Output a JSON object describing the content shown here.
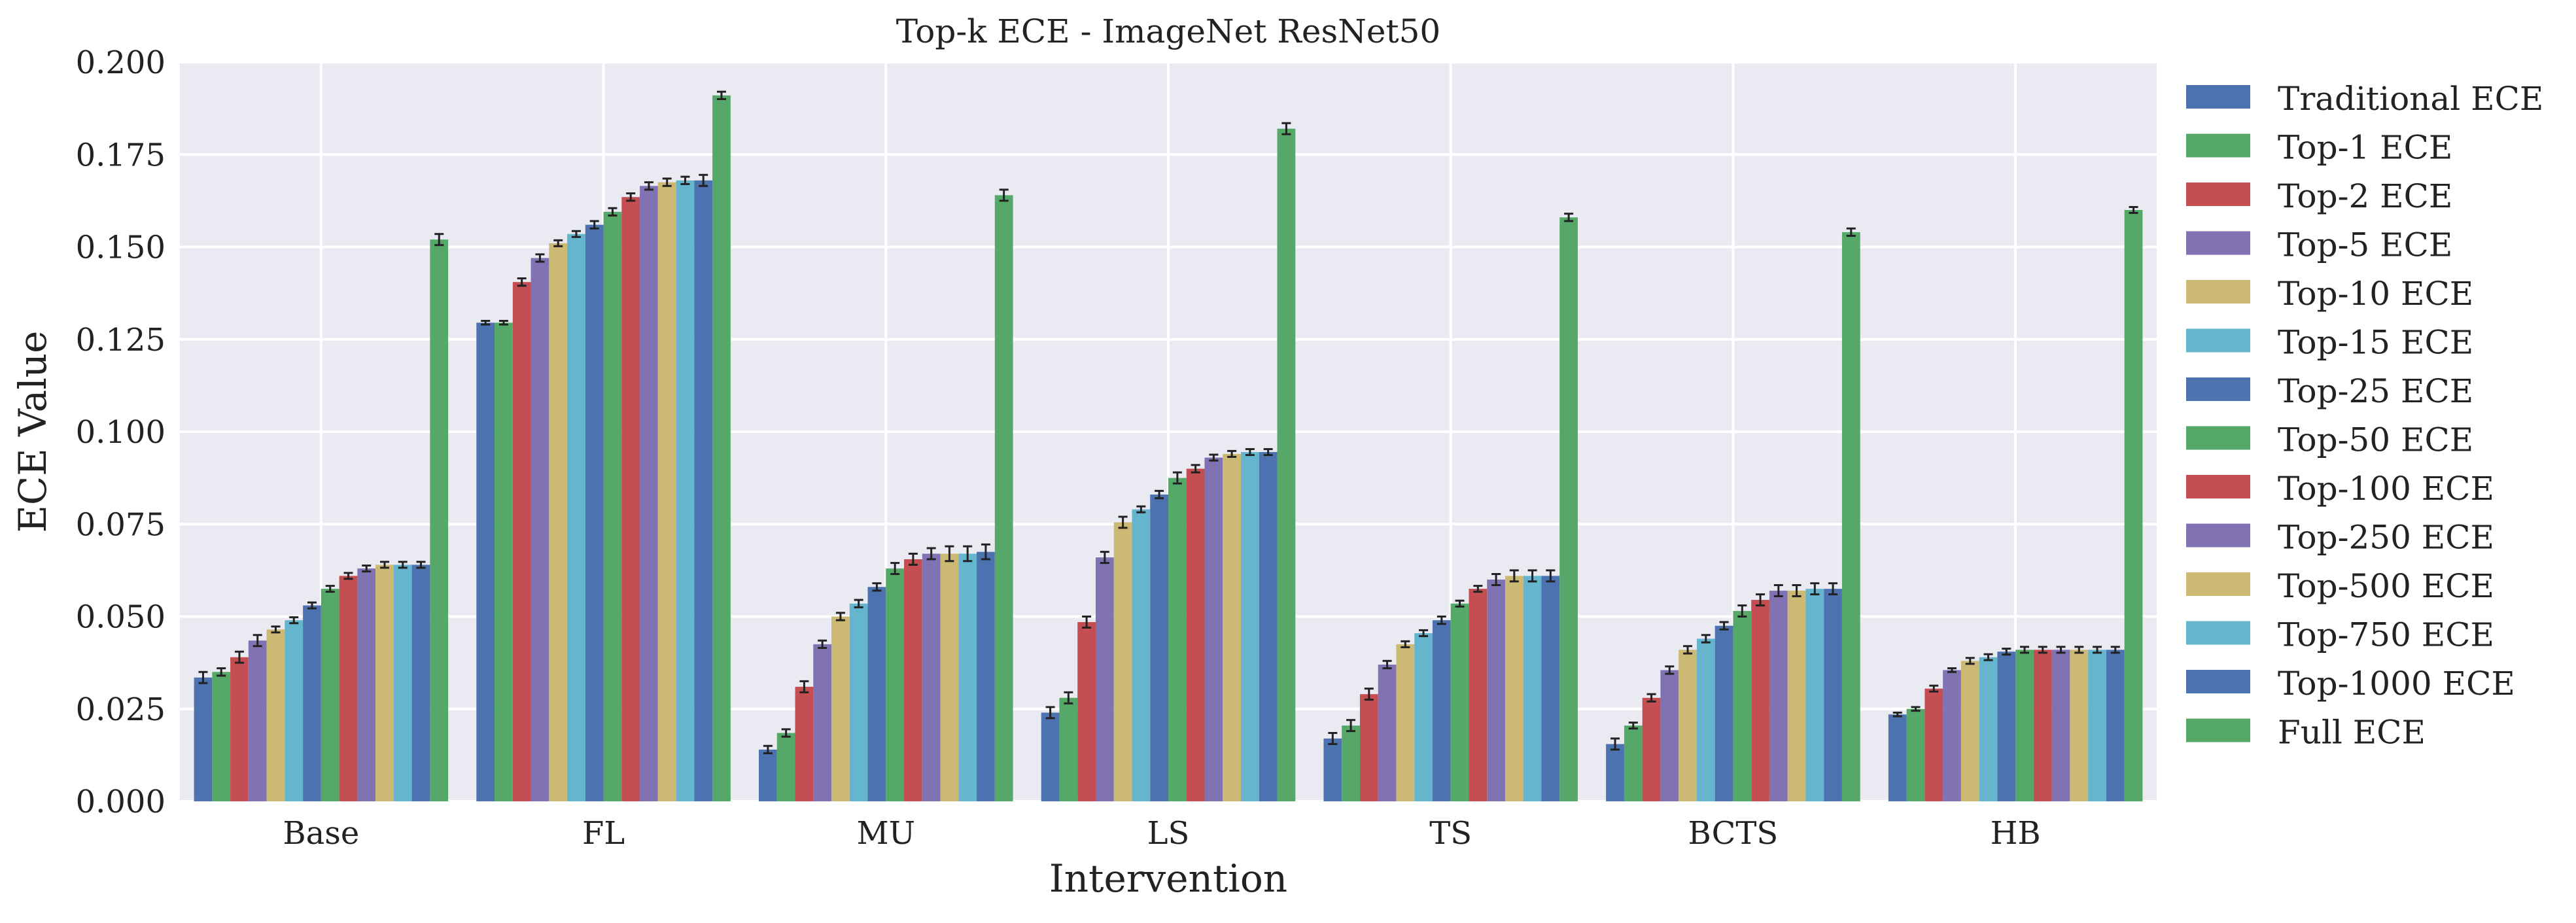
{
  "chart_data": {
    "type": "bar",
    "title": "Top-k ECE - ImageNet ResNet50",
    "xlabel": "Intervention",
    "ylabel": "ECE Value",
    "ylim": [
      0,
      0.2
    ],
    "yticks": [
      "0.000",
      "0.025",
      "0.050",
      "0.075",
      "0.100",
      "0.125",
      "0.150",
      "0.175",
      "0.200"
    ],
    "grid": true,
    "legend_position": "right, outside plot",
    "categories": [
      "Base",
      "FL",
      "MU",
      "LS",
      "TS",
      "BCTS",
      "HB"
    ],
    "series": [
      {
        "name": "Traditional ECE",
        "color": "#4c72b0",
        "values": [
          0.0335,
          0.1295,
          0.014,
          0.024,
          0.017,
          0.0155,
          0.0235
        ],
        "errors": [
          0.0015,
          0.0005,
          0.001,
          0.0015,
          0.0015,
          0.0015,
          0.0005
        ]
      },
      {
        "name": "Top-1 ECE",
        "color": "#55a868",
        "values": [
          0.035,
          0.1295,
          0.0185,
          0.028,
          0.0205,
          0.0205,
          0.025
        ],
        "errors": [
          0.001,
          0.0005,
          0.001,
          0.0015,
          0.0015,
          0.0008,
          0.0005
        ]
      },
      {
        "name": "Top-2 ECE",
        "color": "#c44e52",
        "values": [
          0.039,
          0.1405,
          0.031,
          0.0485,
          0.029,
          0.028,
          0.0305
        ],
        "errors": [
          0.0015,
          0.001,
          0.0015,
          0.0015,
          0.0015,
          0.001,
          0.0008
        ]
      },
      {
        "name": "Top-5 ECE",
        "color": "#8172b3",
        "values": [
          0.0435,
          0.147,
          0.0425,
          0.066,
          0.037,
          0.0355,
          0.0355
        ],
        "errors": [
          0.0015,
          0.001,
          0.001,
          0.0015,
          0.001,
          0.001,
          0.0005
        ]
      },
      {
        "name": "Top-10 ECE",
        "color": "#ccb974",
        "values": [
          0.0465,
          0.151,
          0.05,
          0.0755,
          0.0425,
          0.041,
          0.038
        ],
        "errors": [
          0.0008,
          0.0008,
          0.001,
          0.0015,
          0.0008,
          0.001,
          0.0008
        ]
      },
      {
        "name": "Top-15 ECE",
        "color": "#64b5cd",
        "values": [
          0.049,
          0.1535,
          0.0535,
          0.079,
          0.0455,
          0.044,
          0.039
        ],
        "errors": [
          0.0008,
          0.0008,
          0.001,
          0.0008,
          0.0008,
          0.001,
          0.0008
        ]
      },
      {
        "name": "Top-25 ECE",
        "color": "#4c72b0",
        "values": [
          0.053,
          0.156,
          0.058,
          0.083,
          0.049,
          0.0475,
          0.0405
        ],
        "errors": [
          0.0008,
          0.001,
          0.001,
          0.001,
          0.001,
          0.001,
          0.0008
        ]
      },
      {
        "name": "Top-50 ECE",
        "color": "#55a868",
        "values": [
          0.0575,
          0.1595,
          0.063,
          0.0875,
          0.0535,
          0.0515,
          0.041
        ],
        "errors": [
          0.0008,
          0.001,
          0.0015,
          0.0015,
          0.0008,
          0.0015,
          0.0008
        ]
      },
      {
        "name": "Top-100 ECE",
        "color": "#c44e52",
        "values": [
          0.061,
          0.1635,
          0.0655,
          0.09,
          0.0575,
          0.0545,
          0.041
        ],
        "errors": [
          0.0008,
          0.001,
          0.0015,
          0.001,
          0.0008,
          0.0015,
          0.0008
        ]
      },
      {
        "name": "Top-250 ECE",
        "color": "#8172b3",
        "values": [
          0.063,
          0.1665,
          0.067,
          0.093,
          0.06,
          0.057,
          0.041
        ],
        "errors": [
          0.0008,
          0.001,
          0.0015,
          0.0008,
          0.0015,
          0.0015,
          0.0008
        ]
      },
      {
        "name": "Top-500 ECE",
        "color": "#ccb974",
        "values": [
          0.064,
          0.1675,
          0.067,
          0.094,
          0.061,
          0.057,
          0.041
        ],
        "errors": [
          0.0008,
          0.001,
          0.002,
          0.0008,
          0.0015,
          0.0015,
          0.0008
        ]
      },
      {
        "name": "Top-750 ECE",
        "color": "#64b5cd",
        "values": [
          0.064,
          0.168,
          0.067,
          0.0945,
          0.061,
          0.0575,
          0.041
        ],
        "errors": [
          0.0008,
          0.001,
          0.002,
          0.0008,
          0.0015,
          0.0015,
          0.0008
        ]
      },
      {
        "name": "Top-1000 ECE",
        "color": "#4c72b0",
        "values": [
          0.064,
          0.168,
          0.0675,
          0.0945,
          0.061,
          0.0575,
          0.041
        ],
        "errors": [
          0.0008,
          0.0015,
          0.002,
          0.0008,
          0.0015,
          0.0015,
          0.0008
        ]
      },
      {
        "name": "Full ECE",
        "color": "#55a868",
        "values": [
          0.152,
          0.191,
          0.164,
          0.182,
          0.158,
          0.154,
          0.16
        ],
        "errors": [
          0.0015,
          0.001,
          0.0015,
          0.0015,
          0.001,
          0.001,
          0.0008
        ]
      }
    ]
  }
}
